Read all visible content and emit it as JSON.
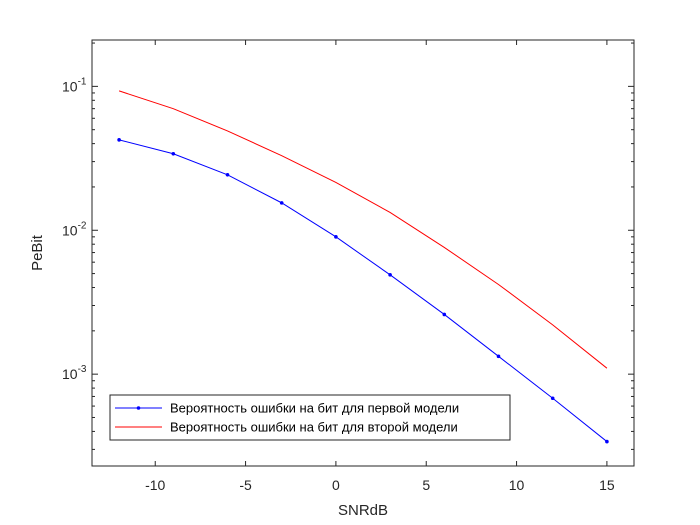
{
  "chart_data": {
    "type": "line",
    "title": "",
    "xlabel": "SNRdB",
    "ylabel": "PeBit",
    "x": [
      -12,
      -9,
      -6,
      -3,
      0,
      3,
      6,
      9,
      12,
      15
    ],
    "xlim": [
      -13.5,
      16.5
    ],
    "ylim": [
      0.00023,
      0.21
    ],
    "yscale": "log",
    "xticks": [
      -10,
      -5,
      0,
      5,
      10,
      15
    ],
    "xtick_labels": [
      "-10",
      "-5",
      "0",
      "5",
      "10",
      "15"
    ],
    "yticks": [
      {
        "value": 0.1,
        "base": "10",
        "exp": "-1"
      },
      {
        "value": 0.01,
        "base": "10",
        "exp": "-2"
      },
      {
        "value": 0.001,
        "base": "10",
        "exp": "-3"
      }
    ],
    "grid": false,
    "legend_position": "bottom-left",
    "series": [
      {
        "name": "Вероятность ошибки на бит для первой модели",
        "color": "#0000ff",
        "marker": "point",
        "values": [
          0.0425,
          0.034,
          0.0243,
          0.0155,
          0.009,
          0.0049,
          0.0026,
          0.00133,
          0.00068,
          0.00034
        ]
      },
      {
        "name": "Вероятность ошибки на бит для второй модели",
        "color": "#ff0000",
        "marker": "none",
        "values": [
          0.093,
          0.07,
          0.049,
          0.033,
          0.0215,
          0.0133,
          0.0076,
          0.0042,
          0.0022,
          0.0011
        ]
      }
    ]
  }
}
